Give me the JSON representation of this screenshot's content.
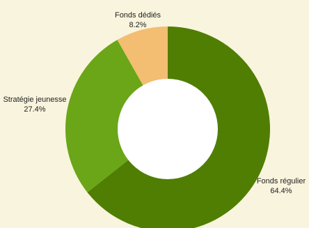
{
  "chart_data": {
    "type": "pie",
    "donut": true,
    "slices": [
      {
        "label": "Fonds régulier",
        "percent_label": "64.4%",
        "value": 64.4,
        "color": "#4f7e03"
      },
      {
        "label": "Stratégie jeunesse",
        "percent_label": "27.4%",
        "value": 27.4,
        "color": "#6aa618"
      },
      {
        "label": "Fonds dédiés",
        "percent_label": "8.2%",
        "value": 8.2,
        "color": "#f3bd72"
      }
    ],
    "start_angle_deg": 0,
    "direction": "clockwise",
    "background": "#f9f4dd"
  }
}
